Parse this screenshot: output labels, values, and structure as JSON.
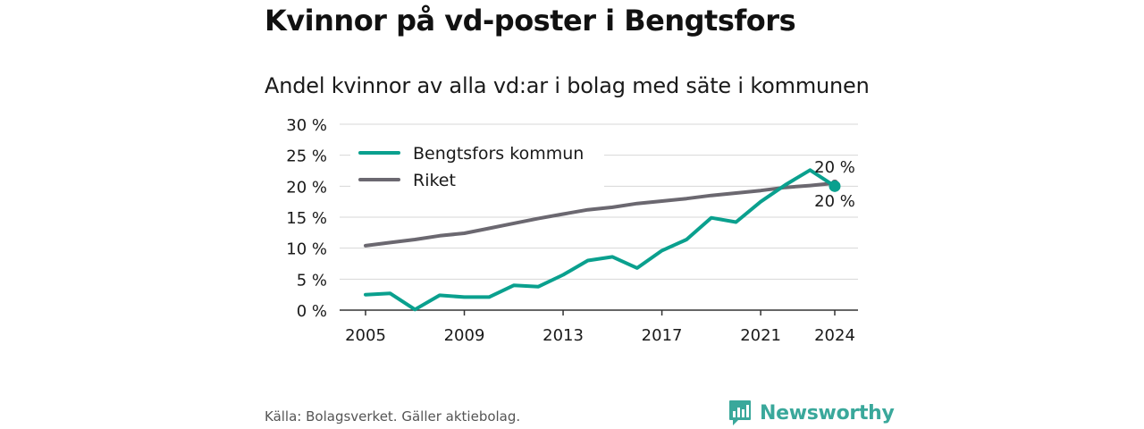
{
  "title": "Kvinnor på vd-poster i Bengtsfors",
  "subtitle": "Andel kvinnor av alla vd:ar i bolag med säte i kommunen",
  "source": "Källa: Bolagsverket. Gäller aktiebolag.",
  "brand": "Newsworthy",
  "colors": {
    "kommun": "#0aa08e",
    "riket": "#6b6870",
    "grid": "#d7d7d7",
    "axis": "#333333",
    "brand": "#3aa89b"
  },
  "chart_data": {
    "type": "line",
    "title": "",
    "xlabel": "",
    "ylabel": "",
    "x": [
      2005,
      2006,
      2007,
      2008,
      2009,
      2010,
      2011,
      2012,
      2013,
      2014,
      2015,
      2016,
      2017,
      2018,
      2019,
      2020,
      2021,
      2022,
      2023,
      2024
    ],
    "xticks": [
      "2005",
      "2009",
      "2013",
      "2017",
      "2021",
      "2024"
    ],
    "yticks": [
      "0 %",
      "5 %",
      "10 %",
      "15 %",
      "20 %",
      "25 %",
      "30 %"
    ],
    "ylim": [
      0,
      30
    ],
    "grid": true,
    "legend_position": "top-left",
    "series": [
      {
        "name": "Bengtsfors kommun",
        "color_key": "kommun",
        "values": [
          2.5,
          2.7,
          0.1,
          2.4,
          2.1,
          2.1,
          4.0,
          3.8,
          5.7,
          8.0,
          8.6,
          6.8,
          9.6,
          11.4,
          14.9,
          14.2,
          17.5,
          20.2,
          22.6,
          20.0
        ],
        "end_label": "20 %"
      },
      {
        "name": "Riket",
        "color_key": "riket",
        "values": [
          10.4,
          10.9,
          11.4,
          12.0,
          12.4,
          13.2,
          14.0,
          14.8,
          15.5,
          16.2,
          16.6,
          17.2,
          17.6,
          18.0,
          18.5,
          18.9,
          19.3,
          19.8,
          20.1,
          20.5
        ],
        "end_label": "20 %"
      }
    ]
  }
}
